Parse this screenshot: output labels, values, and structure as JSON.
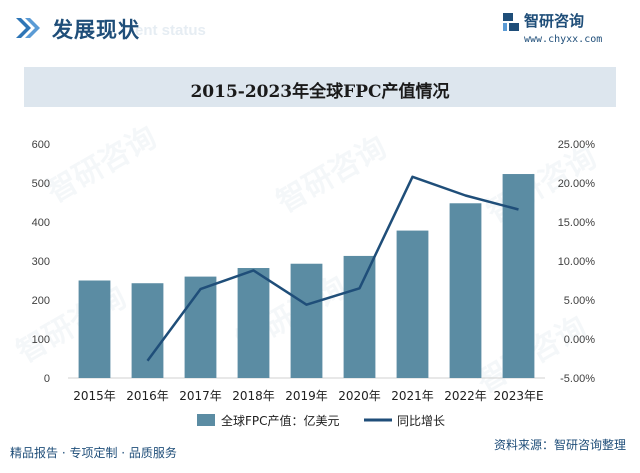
{
  "header": {
    "title": "发展现状",
    "subtitle": "ent status",
    "logo_name": "智研咨询",
    "logo_url": "www.chyxx.com"
  },
  "watermark_text": "智研咨询",
  "chart_data": {
    "type": "bar",
    "title": "2015-2023年全球FPC产值情况",
    "categories": [
      "2015年",
      "2016年",
      "2017年",
      "2018年",
      "2019年",
      "2020年",
      "2021年",
      "2022年",
      "2023年E"
    ],
    "series": [
      {
        "name": "全球FPC产值：亿美元",
        "type": "bar",
        "axis": "left",
        "color": "#5b8ca3",
        "values": [
          250,
          243,
          260,
          282,
          293,
          313,
          378,
          448,
          523
        ]
      },
      {
        "name": "同比增长",
        "type": "line",
        "axis": "right",
        "color": "#1f4e79",
        "values": [
          null,
          -2.8,
          6.4,
          8.8,
          4.4,
          6.5,
          20.8,
          18.4,
          16.6
        ]
      }
    ],
    "y_left": {
      "min": 0,
      "max": 600,
      "ticks": [
        "0",
        "100",
        "200",
        "300",
        "400",
        "500",
        "600"
      ]
    },
    "y_right": {
      "min": -5,
      "max": 25,
      "ticks": [
        "-5.00%",
        "0.00%",
        "5.00%",
        "10.00%",
        "15.00%",
        "20.00%",
        "25.00%"
      ]
    },
    "grid": false,
    "legend_position": "bottom"
  },
  "footer": {
    "left": "精品报告 · 专项定制 · 品质服务",
    "right": "资料来源：智研咨询整理"
  }
}
